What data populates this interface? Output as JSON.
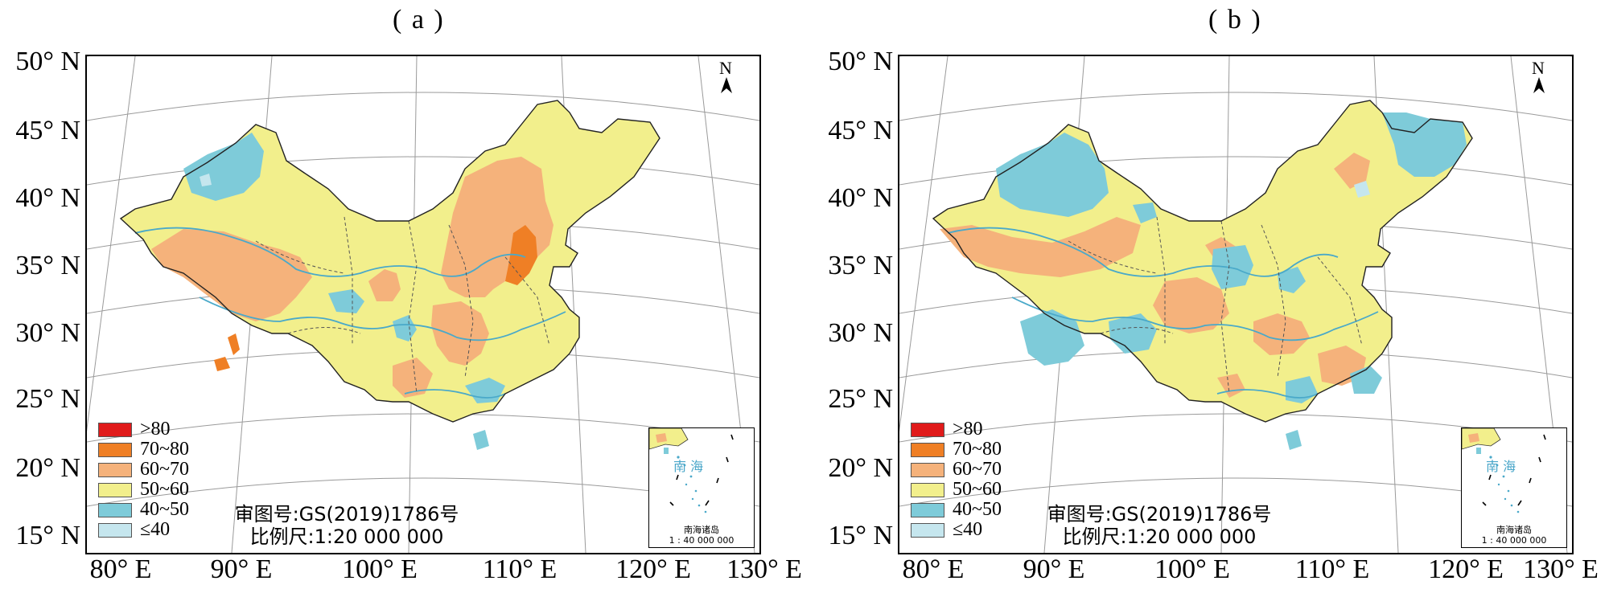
{
  "legend": [
    {
      "label": ">80",
      "color": "#e01b1b"
    },
    {
      "label": "70~80",
      "color": "#ef7f25"
    },
    {
      "label": "60~70",
      "color": "#f5b27b"
    },
    {
      "label": "50~60",
      "color": "#f2ef8c"
    },
    {
      "label": "40~50",
      "color": "#7ecbd9"
    },
    {
      "label": "≤40",
      "color": "#c5e6ee"
    }
  ],
  "lat_labels": [
    "50° N",
    "45° N",
    "40° N",
    "35° N",
    "30° N",
    "25° N",
    "20° N",
    "15° N"
  ],
  "lon_labels": [
    "80° E",
    "90° E",
    "100° E",
    "110° E",
    "120° E",
    "130° E"
  ],
  "panels": [
    {
      "label": "( a )",
      "approval": "审图号:GS(2019)1786号",
      "scale": "比例尺:1:20 000 000",
      "north": "N",
      "inset_title": "南 海",
      "inset_caption_1": "南海诸岛",
      "inset_caption_2": "1 : 40 000 000",
      "dominant_class": "50~60",
      "colors": {
        "base": "#f2ef8c",
        "high": "#f5b27b",
        "peak": "#ef7f25",
        "low": "#7ecbd9",
        "lowest": "#c5e6ee"
      }
    },
    {
      "label": "( b )",
      "approval": "审图号:GS(2019)1786号",
      "scale": "比例尺:1:20 000 000",
      "north": "N",
      "inset_title": "南 海",
      "inset_caption_1": "南海诸岛",
      "inset_caption_2": "1 : 40 000 000",
      "dominant_class": "50~60",
      "colors": {
        "base": "#f2ef8c",
        "high": "#f5b27b",
        "peak": "#ef7f25",
        "low": "#7ecbd9",
        "lowest": "#c5e6ee"
      }
    }
  ]
}
